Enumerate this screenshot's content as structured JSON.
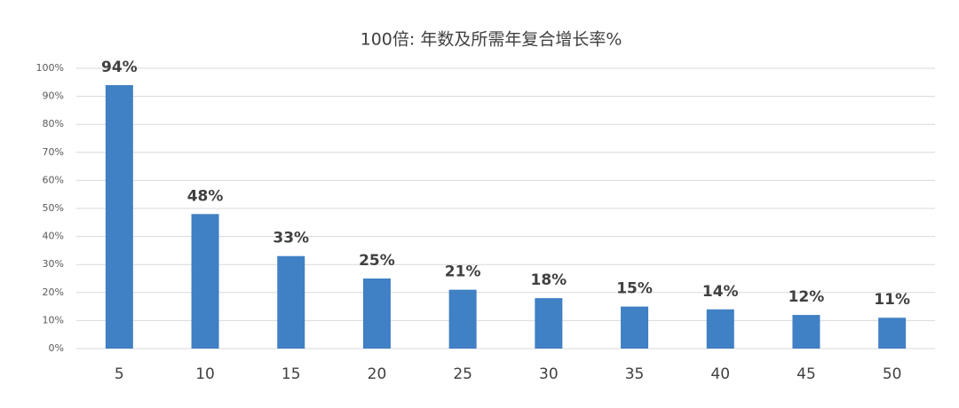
{
  "chart_data": {
    "type": "bar",
    "title": "100倍: 年数及所需年复合增长率%",
    "categories": [
      "5",
      "10",
      "15",
      "20",
      "25",
      "30",
      "35",
      "40",
      "45",
      "50"
    ],
    "values": [
      94,
      48,
      33,
      25,
      21,
      18,
      15,
      14,
      12,
      11
    ],
    "value_labels": [
      "94%",
      "48%",
      "33%",
      "25%",
      "21%",
      "18%",
      "15%",
      "14%",
      "12%",
      "11%"
    ],
    "color": "#4080c4",
    "ylim": [
      0,
      100
    ],
    "yticks": [
      {
        "value": 0,
        "label": "0%"
      },
      {
        "value": 10,
        "label": "10%"
      },
      {
        "value": 20,
        "label": "20%"
      },
      {
        "value": 30,
        "label": "30%"
      },
      {
        "value": 40,
        "label": "40%"
      },
      {
        "value": 50,
        "label": "50%"
      },
      {
        "value": 60,
        "label": "60%"
      },
      {
        "value": 70,
        "label": "70%"
      },
      {
        "value": 80,
        "label": "80%"
      },
      {
        "value": 90,
        "label": "90%"
      },
      {
        "value": 100,
        "label": "100%"
      }
    ],
    "grid": true
  }
}
